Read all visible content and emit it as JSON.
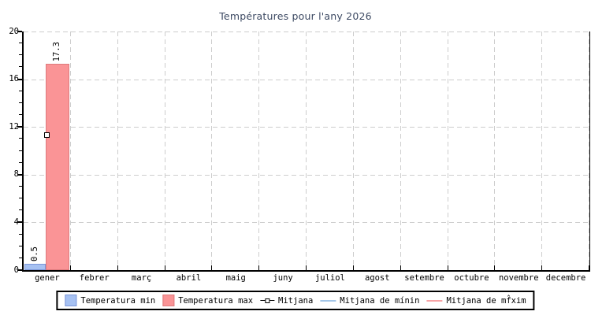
{
  "chart_data": {
    "type": "bar",
    "title": "Températures pour l'any 2026",
    "categories": [
      "gener",
      "febrer",
      "març",
      "abril",
      "maig",
      "juny",
      "juliol",
      "agost",
      "setembre",
      "octubre",
      "novembre",
      "decembre"
    ],
    "ylim": [
      0,
      20
    ],
    "y_major_ticks": [
      0,
      4,
      8,
      12,
      16,
      20
    ],
    "y_minor_step": 1,
    "grid": "dashed",
    "legend_position": "bottom",
    "series": [
      {
        "name": "Temperatura min",
        "kind": "bar",
        "fill": "#a6c1f2",
        "border": "#7b96d8",
        "values": [
          0.5,
          null,
          null,
          null,
          null,
          null,
          null,
          null,
          null,
          null,
          null,
          null
        ],
        "labels": [
          "0.5",
          "",
          "",
          "",
          "",
          "",
          "",
          "",
          "",
          "",
          "",
          ""
        ]
      },
      {
        "name": "Temperatura max",
        "kind": "bar",
        "fill": "#fa9496",
        "border": "#de7a7d",
        "values": [
          17.3,
          null,
          null,
          null,
          null,
          null,
          null,
          null,
          null,
          null,
          null,
          null
        ],
        "labels": [
          "17.3",
          "",
          "",
          "",
          "",
          "",
          "",
          "",
          "",
          "",
          "",
          ""
        ]
      },
      {
        "name": "Mitjana",
        "kind": "point",
        "marker": "open-square",
        "color": "#000000",
        "values": [
          11.3,
          null,
          null,
          null,
          null,
          null,
          null,
          null,
          null,
          null,
          null,
          null
        ]
      },
      {
        "name": "Mitjana de mínin",
        "kind": "line",
        "color": "#a3c6e8",
        "values": []
      },
      {
        "name": "Mitjana de mf̂xim",
        "kind": "line",
        "color": "#f7a3a5",
        "values": []
      }
    ],
    "colors": {
      "grid": "#cdcdcd",
      "axis": "#000000",
      "title": "#3d4a63",
      "background": "#ffffff"
    }
  }
}
